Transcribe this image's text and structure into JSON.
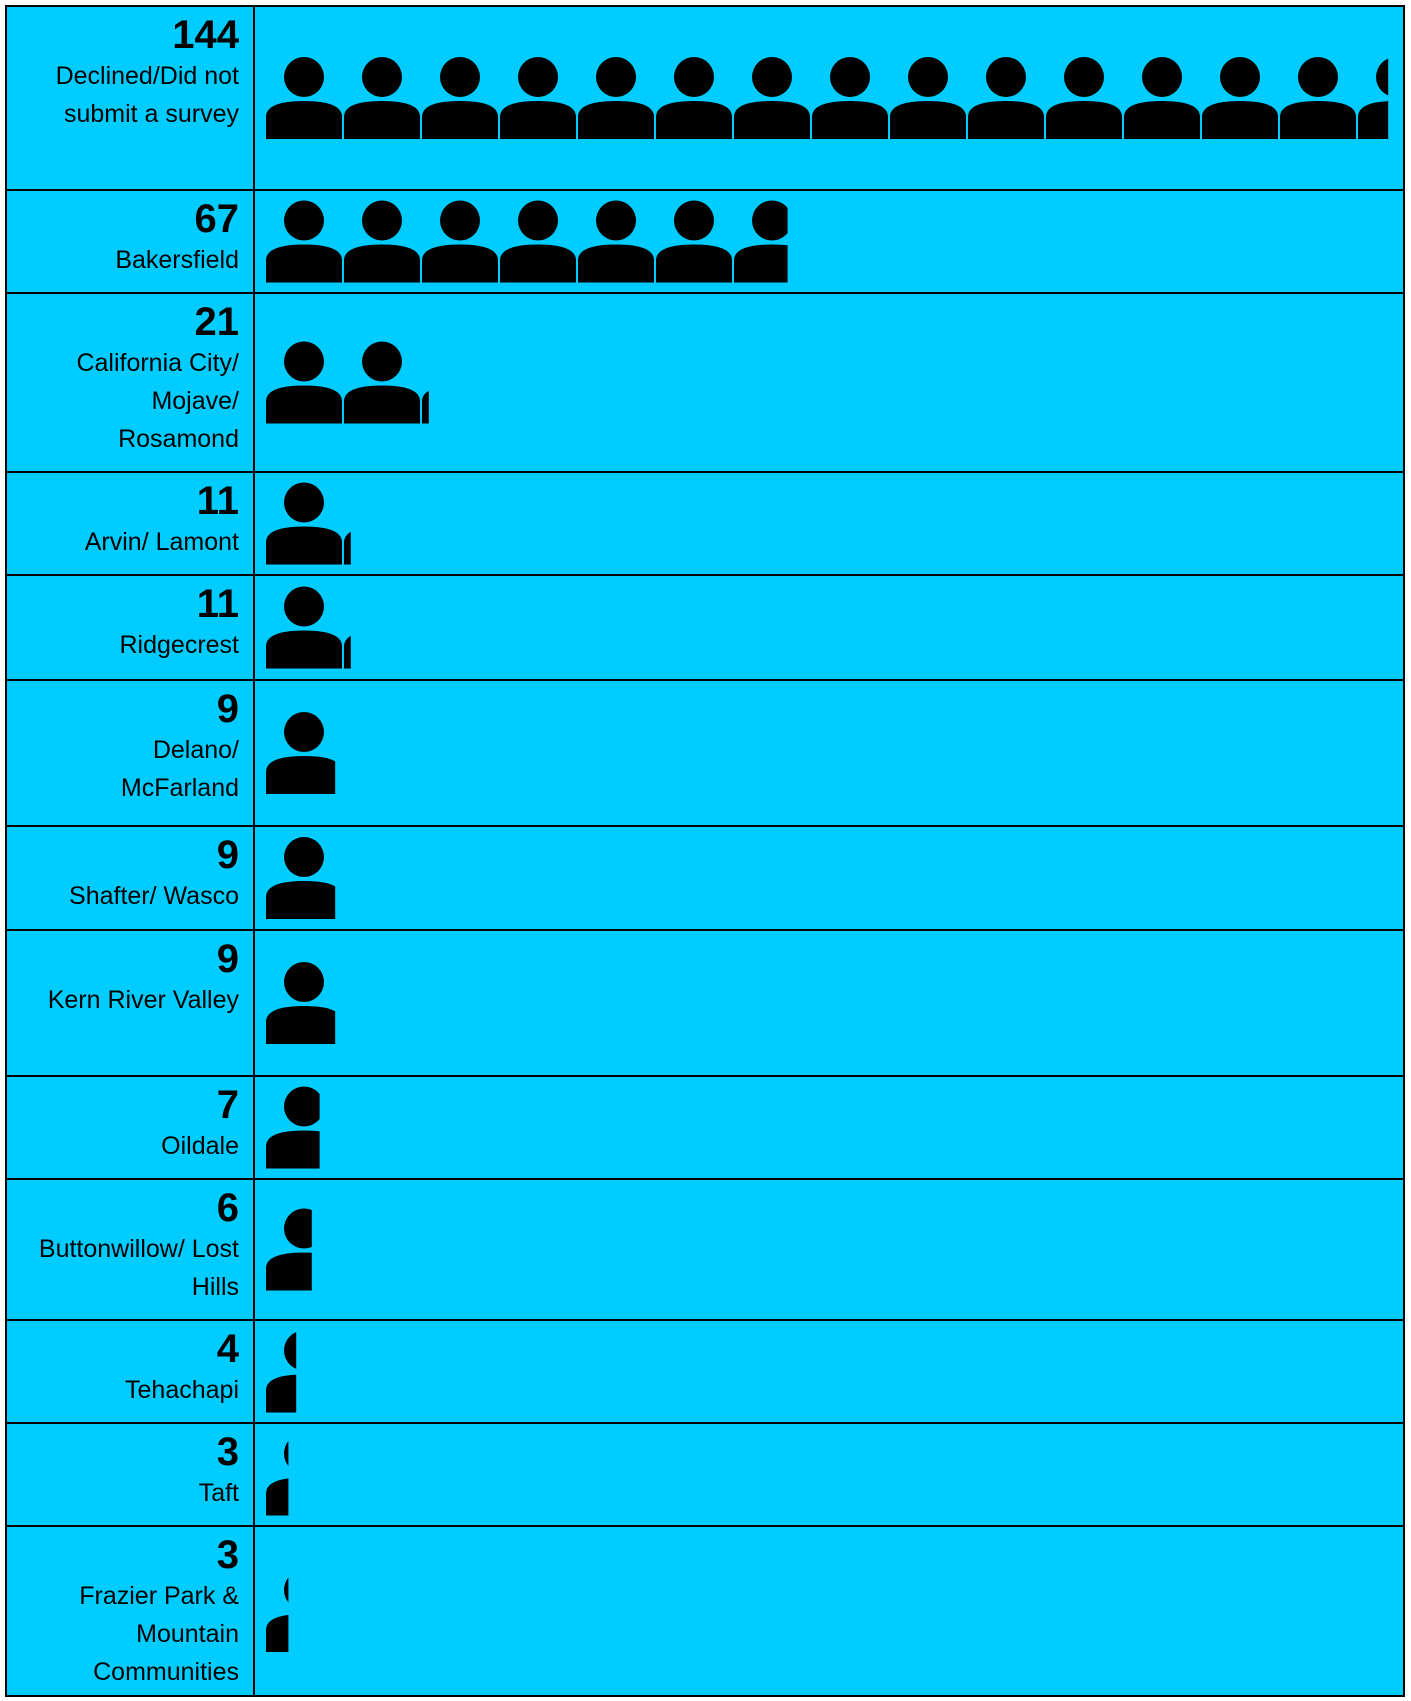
{
  "chart_data": {
    "type": "pictograph",
    "categories": [
      "Declined/Did not submit a survey",
      "Bakersfield",
      "California City/ Mojave/ Rosamond",
      "Arvin/ Lamont",
      "Ridgecrest",
      "Delano/ McFarland",
      "Shafter/ Wasco",
      "Kern River Valley",
      "Oildale",
      "Buttonwillow/ Lost Hills",
      "Tehachapi",
      "Taft",
      "Frazier Park & Mountain Communities"
    ],
    "values": [
      144,
      67,
      21,
      11,
      11,
      9,
      9,
      9,
      7,
      6,
      4,
      3,
      3
    ],
    "color": "#000000",
    "background": "#00ccff"
  }
}
